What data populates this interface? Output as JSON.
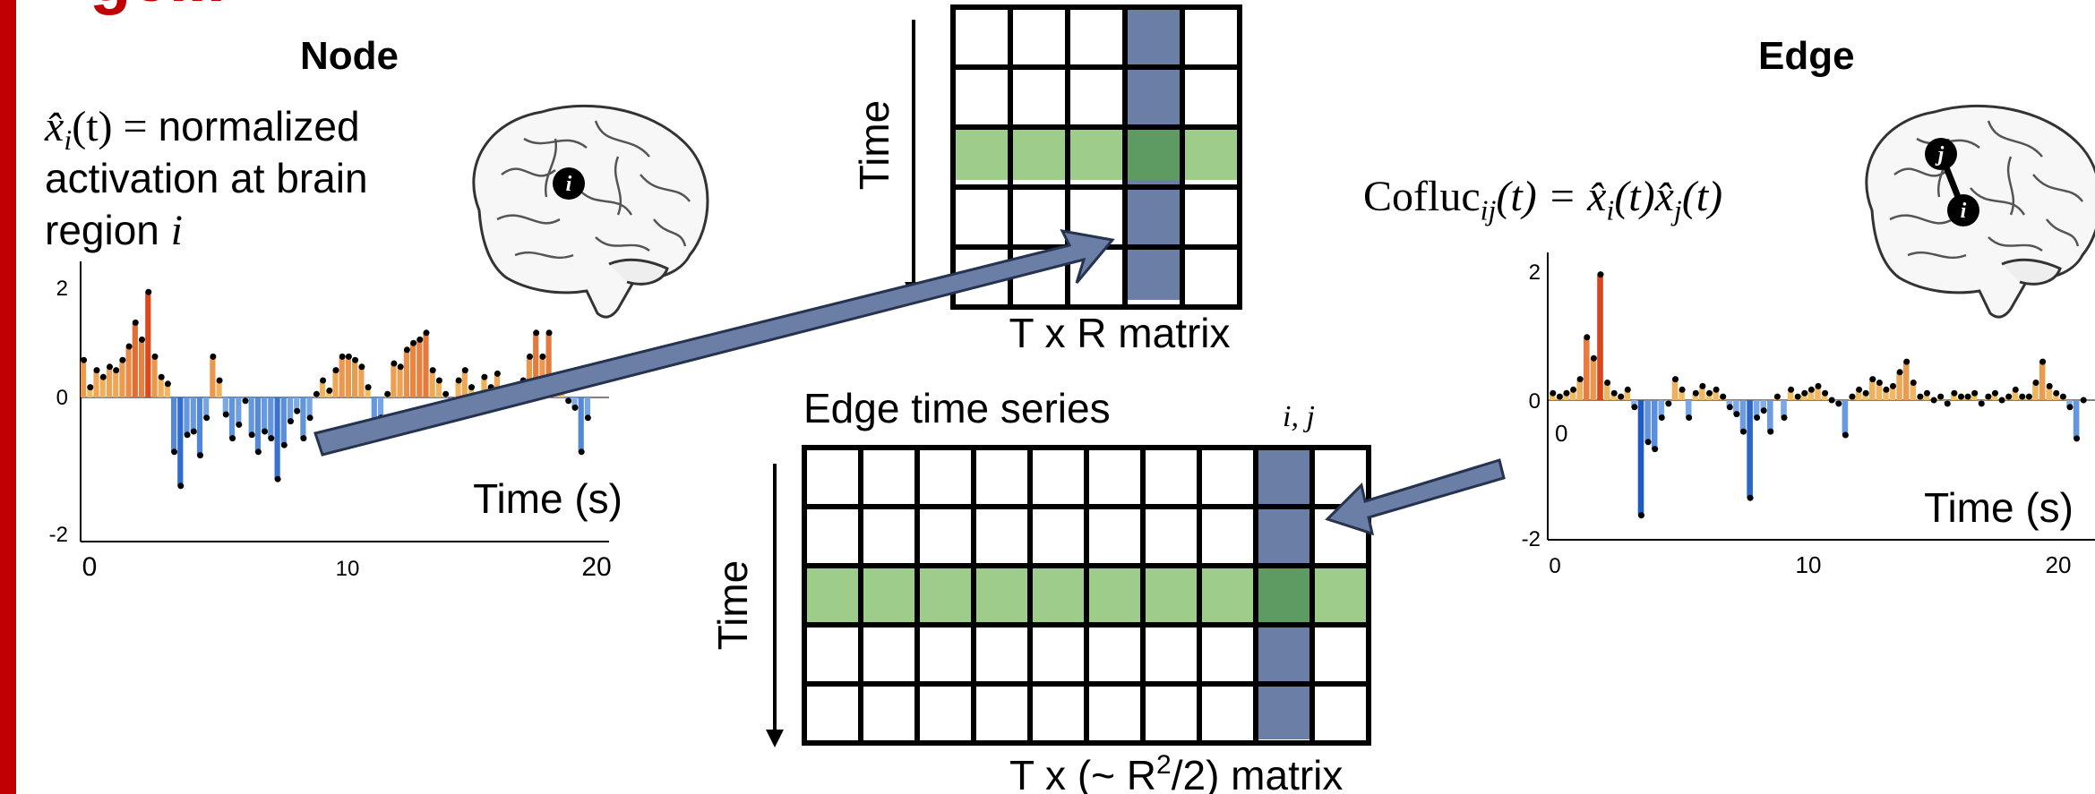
{
  "title_fragment": "ge...",
  "node_panel": {
    "heading": "Node",
    "formula_symbol": "x̂",
    "formula_sub": "i",
    "formula_arg": "(t) = ",
    "desc_lines": [
      "normalized",
      "activation at brain",
      "region "
    ],
    "desc_var": "i",
    "brain_label": "i",
    "chart": {
      "yticks": [
        "2",
        "0",
        "-2"
      ],
      "xticks": [
        "0",
        "10",
        "20"
      ],
      "xlabel": "Time (s)"
    }
  },
  "center_top": {
    "time_label": "Time",
    "matrix_label": "T x R matrix"
  },
  "center_bottom": {
    "title": "Edge time series",
    "column_label": "i, j",
    "time_label": "Time",
    "matrix_label_prefix": "T x (~ R",
    "matrix_label_sup": "2",
    "matrix_label_suffix": "/2) matrix"
  },
  "edge_panel": {
    "heading": "Edge",
    "formula_name": "Cofluc",
    "formula_sub": "ij",
    "formula_rest": "(t) = x̂",
    "formula_sub_i": "i",
    "formula_mid": "(t)x̂",
    "formula_sub_j": "j",
    "formula_end": "(t)",
    "brain_labels": [
      "j",
      "i"
    ],
    "chart": {
      "yticks": [
        "2",
        "0",
        "-2"
      ],
      "zero_label": "0",
      "xticks": [
        "0",
        "10",
        "20"
      ],
      "xlabel": "Time (s)"
    }
  },
  "colors": {
    "accent_red": "#c00000",
    "highlight_column": "#6b7ea6",
    "highlight_row": "#9dcc8b",
    "intersection": "#5d9b63",
    "arrow_fill": "#6b7ea6",
    "arrow_stroke": "#25334f",
    "positive_low": "#f5c76a",
    "positive_high": "#d9461c",
    "negative_low": "#8ab6ee",
    "negative_high": "#1e5bc4"
  },
  "chart_data": [
    {
      "type": "bar",
      "title": "",
      "xlabel": "Time (s)",
      "ylabel": "",
      "xlim": [
        0,
        20
      ],
      "ylim": [
        -2,
        2
      ],
      "values": [
        0.55,
        0.15,
        0.4,
        0.3,
        0.45,
        0.4,
        0.55,
        0.75,
        1.1,
        0.85,
        1.55,
        0.6,
        0.3,
        0.2,
        -0.8,
        -1.3,
        -0.55,
        -0.5,
        -0.85,
        -0.3,
        0.6,
        0.25,
        -0.25,
        -0.6,
        -0.4,
        -0.05,
        -0.55,
        -0.8,
        -0.5,
        -0.6,
        -1.2,
        -0.7,
        -0.35,
        -0.2,
        -0.6,
        -0.3,
        0.05,
        0.25,
        0.1,
        0.4,
        0.6,
        0.6,
        0.55,
        0.45,
        0.15,
        -0.55,
        -0.3,
        0.05,
        0.5,
        0.45,
        0.7,
        0.8,
        0.85,
        0.95,
        0.4,
        0.25,
        0.05,
        -0.2,
        0.25,
        0.4,
        0.15,
        -0.1,
        0.3,
        0.15,
        0.35,
        0.1,
        0.05,
        0.15,
        0.25,
        0.6,
        0.95,
        0.6,
        0.95,
        0.3,
        0.1,
        -0.05,
        -0.15,
        -0.8,
        -0.3
      ]
    },
    {
      "type": "bar",
      "title": "",
      "xlabel": "Time (s)",
      "ylabel": "",
      "xlim": [
        0,
        20
      ],
      "ylim": [
        -2,
        2
      ],
      "values": [
        0.1,
        0.05,
        0.1,
        0.15,
        0.3,
        0.9,
        0.6,
        1.8,
        0.25,
        0.1,
        0.05,
        0.15,
        -0.1,
        -1.65,
        -0.6,
        -0.7,
        -0.25,
        -0.05,
        0.3,
        0.15,
        -0.25,
        0.1,
        0.2,
        0.1,
        0.15,
        0.05,
        -0.1,
        -0.2,
        -0.45,
        -1.4,
        -0.25,
        -0.15,
        -0.45,
        0.05,
        -0.25,
        0.15,
        0.05,
        0.1,
        0.15,
        0.2,
        0.1,
        0.0,
        -0.05,
        -0.5,
        0.05,
        0.15,
        0.1,
        0.3,
        0.25,
        0.15,
        0.2,
        0.4,
        0.55,
        0.25,
        0.05,
        0.1,
        0.0,
        0.05,
        -0.05,
        0.1,
        0.05,
        0.05,
        0.1,
        -0.05,
        0.05,
        0.1,
        0.0,
        0.05,
        0.15,
        0.05,
        0.05,
        0.25,
        0.55,
        0.2,
        0.1,
        0.05,
        -0.1,
        -0.55,
        0.0
      ]
    }
  ]
}
